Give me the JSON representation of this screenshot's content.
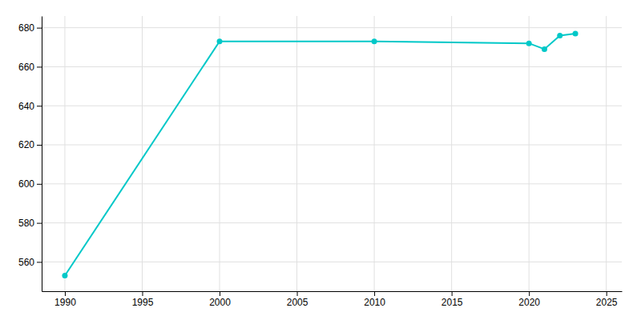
{
  "chart_data": {
    "type": "line",
    "x": [
      1990,
      2000,
      2010,
      2020,
      2021,
      2022,
      2023
    ],
    "values": [
      553,
      673,
      673,
      672,
      669,
      676,
      677
    ],
    "color": "#00c8c8",
    "marker": "circle",
    "xlim": [
      1988.5,
      2026
    ],
    "ylim": [
      545,
      686
    ],
    "xticks": [
      1990,
      1995,
      2000,
      2005,
      2010,
      2015,
      2020,
      2025
    ],
    "yticks": [
      560,
      580,
      600,
      620,
      640,
      660,
      680
    ],
    "grid": true
  }
}
